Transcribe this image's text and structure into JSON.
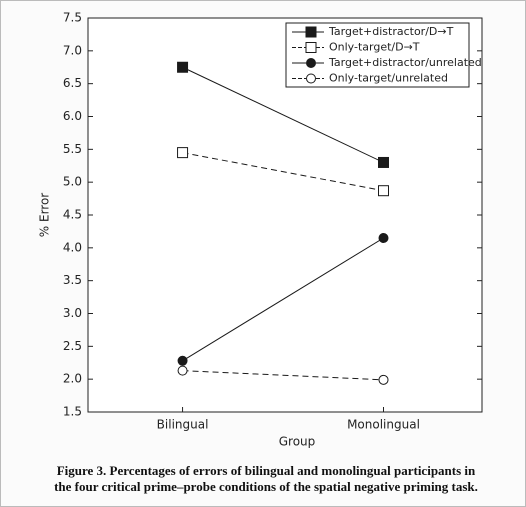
{
  "chart_data": {
    "type": "line",
    "x_label": "Group",
    "y_label": "% Error",
    "categories": [
      "Bilingual",
      "Monolingual"
    ],
    "ylim": [
      1.5,
      7.5
    ],
    "yticks": [
      1.5,
      {
        "value": 2,
        "label": "2.0"
      },
      2.5,
      {
        "value": 3,
        "label": "3.0"
      },
      3.5,
      {
        "value": 4,
        "label": "4.0"
      },
      4.5,
      {
        "value": 5,
        "label": "5.0"
      },
      5.5,
      {
        "value": 6,
        "label": "6.0"
      },
      6.5,
      {
        "value": 7,
        "label": "7.0"
      },
      7.5
    ],
    "legend_position": "upper right",
    "series": [
      {
        "name": "Target+distractor/D→T",
        "color": "#1a1a1a",
        "marker": "square",
        "filled": true,
        "dashed": false,
        "values": [
          6.75,
          5.3
        ]
      },
      {
        "name": "Only-target/D→T",
        "color": "#1a1a1a",
        "marker": "square",
        "filled": false,
        "dashed": true,
        "values": [
          5.45,
          4.87
        ]
      },
      {
        "name": "Target+distractor/unrelated",
        "color": "#1a1a1a",
        "marker": "circle",
        "filled": true,
        "dashed": false,
        "values": [
          2.28,
          4.15
        ]
      },
      {
        "name": "Only-target/unrelated",
        "color": "#1a1a1a",
        "marker": "circle",
        "filled": false,
        "dashed": true,
        "values": [
          2.13,
          1.99
        ]
      }
    ]
  },
  "caption": [
    "Figure 3. Percentages of errors of bilingual and monolingual participants in",
    "the four critical prime–probe conditions of the spatial negative priming task."
  ]
}
